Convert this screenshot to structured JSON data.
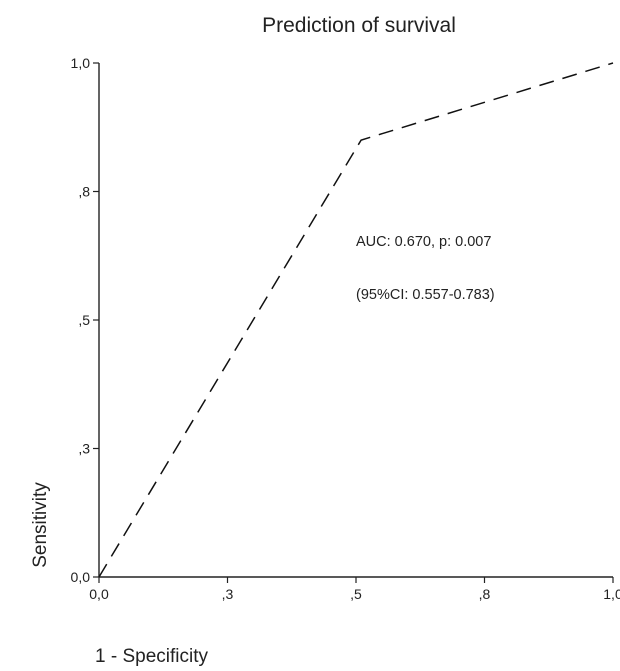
{
  "chart_data": {
    "type": "line",
    "title": "Prediction of survival",
    "xlabel": "1 - Specificity",
    "ylabel": "Sensitivity",
    "xlim": [
      0,
      1
    ],
    "ylim": [
      0,
      1
    ],
    "x_ticks": [
      {
        "value": 0.0,
        "label": "0,0"
      },
      {
        "value": 0.25,
        "label": ",3"
      },
      {
        "value": 0.5,
        "label": ",5"
      },
      {
        "value": 0.75,
        "label": ",8"
      },
      {
        "value": 1.0,
        "label": "1,0"
      }
    ],
    "y_ticks": [
      {
        "value": 0.0,
        "label": "0,0"
      },
      {
        "value": 0.25,
        "label": ",3"
      },
      {
        "value": 0.5,
        "label": ",5"
      },
      {
        "value": 0.75,
        "label": ",8"
      },
      {
        "value": 1.0,
        "label": "1,0"
      }
    ],
    "series": [
      {
        "line_style": "dashed",
        "color": "#111111",
        "points": [
          {
            "x": 0.0,
            "y": 0.0
          },
          {
            "x": 0.51,
            "y": 0.85
          },
          {
            "x": 1.0,
            "y": 1.0
          }
        ]
      }
    ],
    "annotations": [
      "AUC: 0.670, p: 0.007",
      "(95%CI: 0.557-0.783)"
    ],
    "grid": false,
    "legend": "none"
  }
}
